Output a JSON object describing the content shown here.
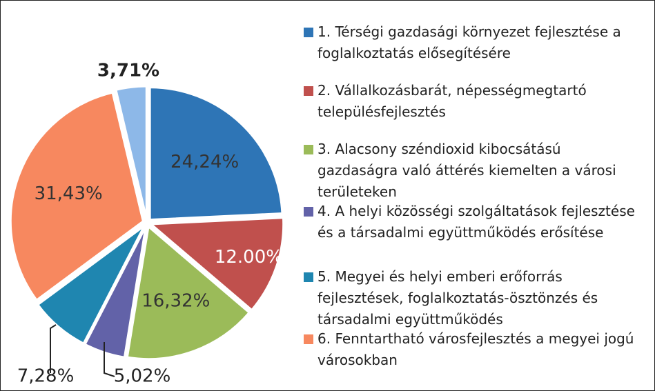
{
  "chart_data": {
    "type": "pie",
    "categories": [
      "1. Térségi gazdasági környezet fejlesztése a foglalkoztatás elősegítésére",
      "2. Vállalkozásbarát, népességmegtartó településfejlesztés",
      "3. Alacsony széndioxid kibocsátású gazdaságra való áttérés kiemelten a városi területeken",
      "4. A helyi közösségi szolgáltatások fejlesztése és a társadalmi együttműködés erősítése",
      "5. Megyei és helyi emberi erőforrás fejlesztések, foglalkoztatás-ösztönzés és társadalmi együttműködés",
      "6. Fenntartható városfejlesztés a megyei jogú városokban",
      null
    ],
    "values": [
      24.24,
      12.0,
      16.32,
      5.02,
      7.28,
      31.43,
      3.71
    ],
    "value_labels": [
      "24,24%",
      "12.00%",
      "16,32%",
      "5,02%",
      "7,28%",
      "31,43%",
      "3,71%"
    ],
    "colors": [
      "#2e75b6",
      "#c0504d",
      "#9bbb59",
      "#6262a8",
      "#1f86b0",
      "#f7885f",
      "#8db8e8"
    ]
  }
}
